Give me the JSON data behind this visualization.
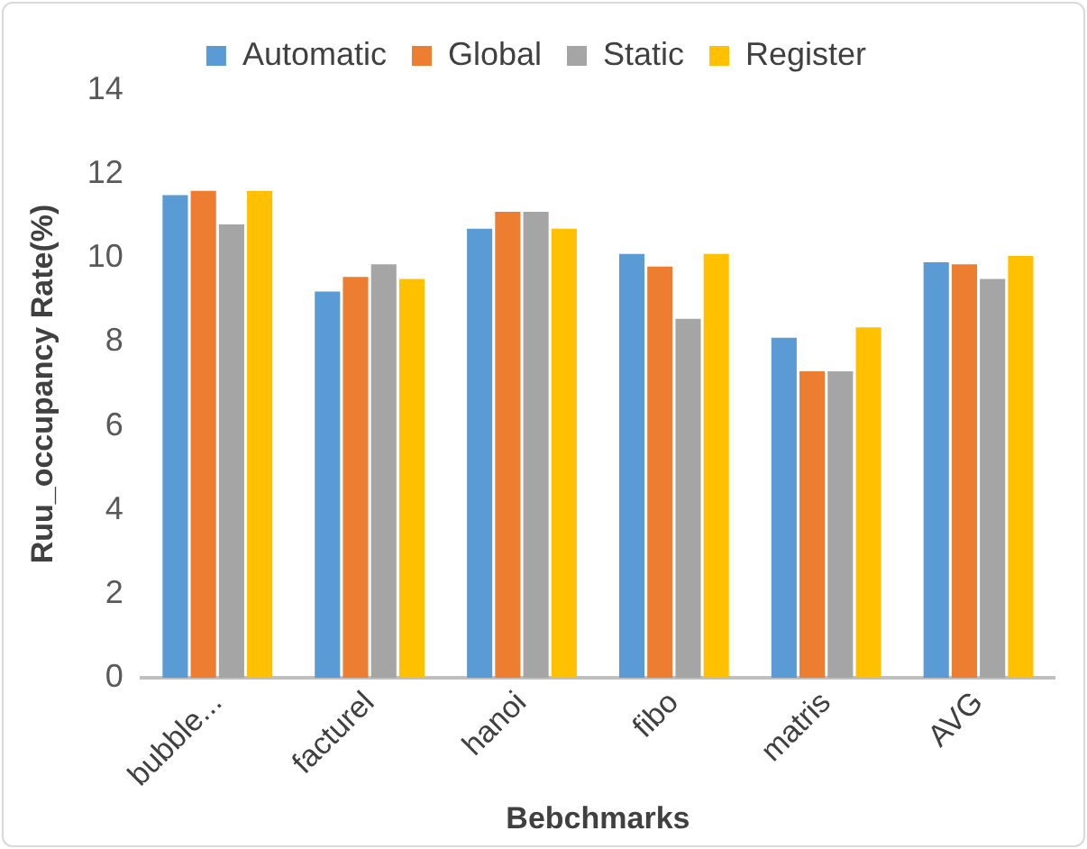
{
  "chart_data": {
    "type": "bar",
    "xlabel": "Bebchmarks",
    "ylabel": "Ruu_occupancy Rate(%)",
    "categories": [
      "bubble...",
      "facturel",
      "hanoi",
      "fibo",
      "matris",
      "AVG"
    ],
    "series": [
      {
        "name": "Automatic",
        "color": "#5b9bd5",
        "values": [
          11.5,
          9.2,
          10.7,
          10.1,
          8.1,
          9.9
        ]
      },
      {
        "name": "Global",
        "color": "#ed7d31",
        "values": [
          11.6,
          9.55,
          11.1,
          9.8,
          7.3,
          9.85
        ]
      },
      {
        "name": "Static",
        "color": "#a5a5a5",
        "values": [
          10.8,
          9.85,
          11.1,
          8.55,
          7.3,
          9.5
        ]
      },
      {
        "name": "Register",
        "color": "#ffc000",
        "values": [
          11.6,
          9.5,
          10.7,
          10.1,
          8.35,
          10.05
        ]
      }
    ],
    "ylim": [
      0,
      14
    ],
    "yticks": [
      0,
      2,
      4,
      6,
      8,
      10,
      12,
      14
    ],
    "grid": false,
    "legend": "top"
  }
}
